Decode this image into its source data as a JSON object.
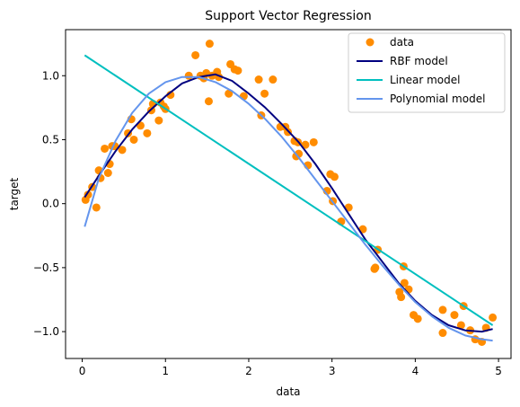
{
  "chart_data": {
    "type": "scatter",
    "title": "Support Vector Regression",
    "xlabel": "data",
    "ylabel": "target",
    "xlim": [
      -0.2,
      5.15
    ],
    "ylim": [
      -1.21,
      1.36
    ],
    "xticks": [
      0,
      1,
      2,
      3,
      4,
      5
    ],
    "yticks": [
      -1.0,
      -0.5,
      0.0,
      0.5,
      1.0
    ],
    "ytick_labels": [
      "−1.0",
      "−0.5",
      "0.0",
      "0.5",
      "1.0"
    ],
    "grid": false,
    "legend_position": "top-right",
    "scatter": {
      "name": "data",
      "color": "#ff8c00",
      "x": [
        0.04,
        0.07,
        0.12,
        0.17,
        0.2,
        0.22,
        0.27,
        0.31,
        0.33,
        0.36,
        0.39,
        0.48,
        0.55,
        0.59,
        0.62,
        0.7,
        0.78,
        0.83,
        0.85,
        0.92,
        0.94,
        0.98,
        1.0,
        1.06,
        1.28,
        1.36,
        1.42,
        1.46,
        1.49,
        1.52,
        1.53,
        1.56,
        1.62,
        1.64,
        1.76,
        1.78,
        1.83,
        1.87,
        1.94,
        2.12,
        2.15,
        2.19,
        2.29,
        2.38,
        2.44,
        2.47,
        2.55,
        2.57,
        2.59,
        2.6,
        2.68,
        2.71,
        2.78,
        2.94,
        2.98,
        3.01,
        3.03,
        3.11,
        3.2,
        3.37,
        3.51,
        3.52,
        3.55,
        3.81,
        3.83,
        3.86,
        3.87,
        3.92,
        3.98,
        4.03,
        4.33,
        4.33,
        4.47,
        4.55,
        4.58,
        4.66,
        4.72,
        4.8,
        4.85,
        4.93
      ],
      "y": [
        0.03,
        0.07,
        0.13,
        -0.03,
        0.26,
        0.2,
        0.43,
        0.24,
        0.31,
        0.45,
        0.45,
        0.42,
        0.55,
        0.66,
        0.5,
        0.61,
        0.55,
        0.73,
        0.78,
        0.65,
        0.79,
        0.76,
        0.74,
        0.85,
        1.0,
        1.16,
        1.0,
        0.98,
        1.02,
        0.8,
        1.25,
        1.0,
        1.03,
        0.99,
        0.86,
        1.09,
        1.05,
        1.04,
        0.84,
        0.97,
        0.69,
        0.86,
        0.97,
        0.6,
        0.6,
        0.56,
        0.49,
        0.37,
        0.48,
        0.39,
        0.46,
        0.3,
        0.48,
        0.1,
        0.23,
        0.02,
        0.21,
        -0.14,
        -0.03,
        -0.2,
        -0.51,
        -0.5,
        -0.36,
        -0.69,
        -0.73,
        -0.49,
        -0.62,
        -0.67,
        -0.87,
        -0.9,
        -1.01,
        -0.83,
        -0.87,
        -0.95,
        -0.8,
        -0.99,
        -1.06,
        -1.08,
        -0.97,
        -0.89
      ]
    },
    "series": [
      {
        "name": "RBF model",
        "color": "#000080",
        "x": [
          0.03,
          0.2,
          0.4,
          0.6,
          0.8,
          1.0,
          1.2,
          1.4,
          1.6,
          1.8,
          2.0,
          2.2,
          2.4,
          2.6,
          2.8,
          3.0,
          3.2,
          3.4,
          3.6,
          3.8,
          4.0,
          4.2,
          4.4,
          4.6,
          4.8,
          4.93
        ],
        "y": [
          0.05,
          0.22,
          0.41,
          0.58,
          0.72,
          0.84,
          0.94,
          0.99,
          1.01,
          0.96,
          0.86,
          0.75,
          0.62,
          0.48,
          0.31,
          0.12,
          -0.08,
          -0.28,
          -0.45,
          -0.62,
          -0.76,
          -0.87,
          -0.95,
          -0.99,
          -1.0,
          -0.98
        ]
      },
      {
        "name": "Linear model",
        "color": "#00bfbf",
        "x": [
          0.03,
          4.93
        ],
        "y": [
          1.16,
          -0.95
        ]
      },
      {
        "name": "Polynomial model",
        "color": "#6495ed",
        "x": [
          0.03,
          0.2,
          0.4,
          0.6,
          0.8,
          1.0,
          1.2,
          1.4,
          1.6,
          1.8,
          2.0,
          2.2,
          2.4,
          2.6,
          2.8,
          3.0,
          3.2,
          3.4,
          3.6,
          3.8,
          4.0,
          4.2,
          4.4,
          4.6,
          4.8,
          4.93
        ],
        "y": [
          -0.18,
          0.2,
          0.49,
          0.71,
          0.86,
          0.95,
          0.99,
          0.99,
          0.95,
          0.88,
          0.78,
          0.66,
          0.52,
          0.36,
          0.19,
          0.02,
          -0.15,
          -0.32,
          -0.48,
          -0.63,
          -0.77,
          -0.88,
          -0.97,
          -1.03,
          -1.06,
          -1.07
        ]
      }
    ]
  }
}
